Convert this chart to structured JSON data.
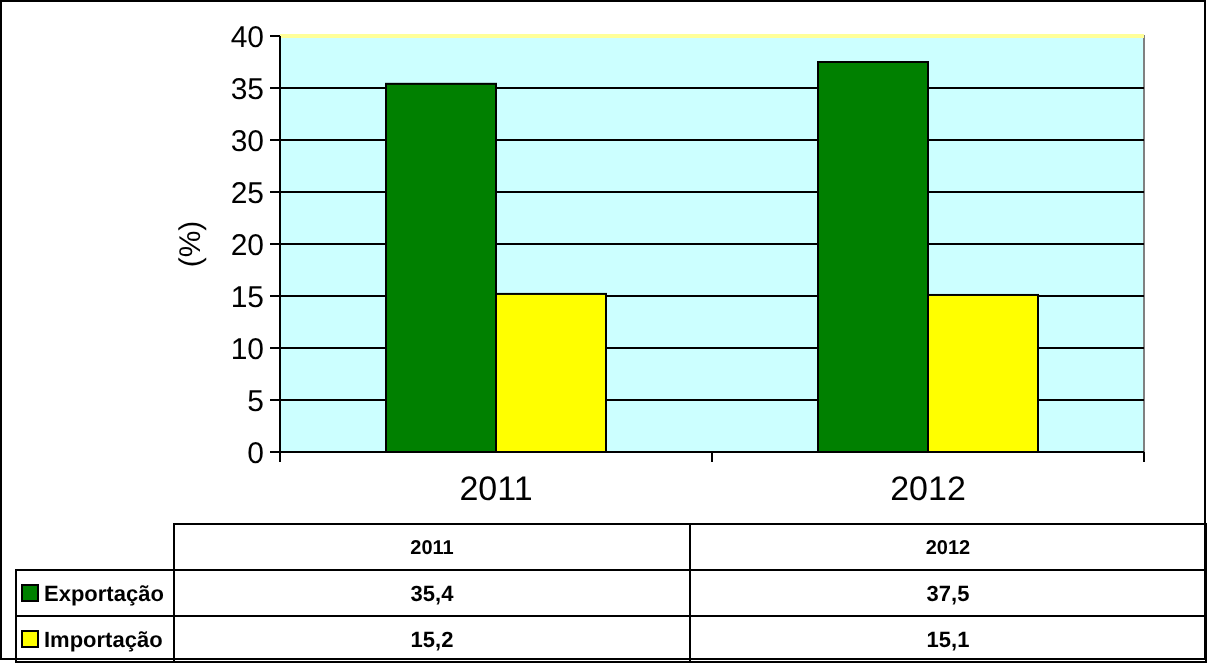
{
  "chart_data": {
    "type": "bar",
    "ylabel": "(%)",
    "categories": [
      "2011",
      "2012"
    ],
    "series": [
      {
        "name": "Exportação",
        "color": "#008000",
        "values": [
          35.4,
          37.5
        ],
        "value_labels": [
          "35,4",
          "37,5"
        ]
      },
      {
        "name": "Importação",
        "color": "#ffff00",
        "values": [
          15.2,
          15.1
        ],
        "value_labels": [
          "15,2",
          "15,1"
        ]
      }
    ],
    "ylim": [
      0,
      40
    ],
    "yticks": [
      0,
      5,
      10,
      15,
      20,
      25,
      30,
      35,
      40
    ],
    "grid": "y",
    "legend": "bottom"
  }
}
